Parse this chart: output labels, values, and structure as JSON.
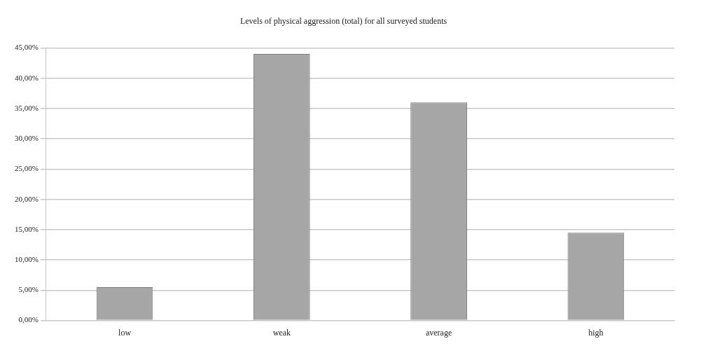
{
  "chart_data": {
    "type": "bar",
    "title": "Levels of physical aggression (total) for all surveyed students",
    "categories": [
      "low",
      "weak",
      "average",
      "high"
    ],
    "values": [
      5.5,
      44,
      36,
      14.5
    ],
    "color": "#a6a6a6",
    "ylim": [
      0,
      45
    ],
    "yticks": [
      {
        "value": 0,
        "label": "0,00%"
      },
      {
        "value": 5,
        "label": "5,00%"
      },
      {
        "value": 10,
        "label": "10,00%"
      },
      {
        "value": 15,
        "label": "15,00%"
      },
      {
        "value": 20,
        "label": "20,00%"
      },
      {
        "value": 25,
        "label": "25,00%"
      },
      {
        "value": 30,
        "label": "30,00%"
      },
      {
        "value": 35,
        "label": "35,00%"
      },
      {
        "value": 40,
        "label": "40,00%"
      },
      {
        "value": 45,
        "label": "45,00%"
      }
    ],
    "grid": "y",
    "legend": false
  }
}
